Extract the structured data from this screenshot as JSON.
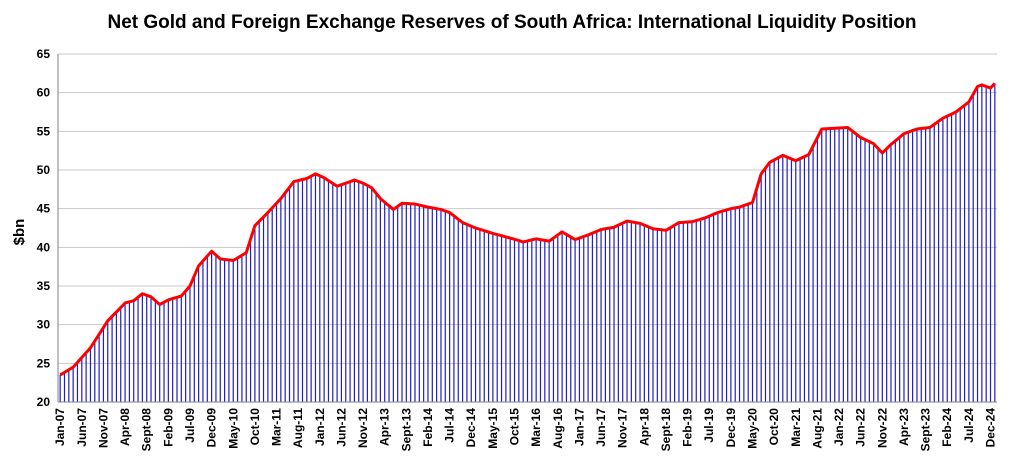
{
  "chart_data": {
    "type": "bar",
    "title": "Net Gold and Foreign Exchange Reserves of South Africa: International Liquidity Position",
    "ylabel": "$bn",
    "xlabel": "",
    "ylim": [
      20,
      65
    ],
    "yticks": [
      20,
      25,
      30,
      35,
      40,
      45,
      50,
      55,
      60,
      65
    ],
    "grid": "horizontal",
    "legend": "none",
    "bar_color": "#1f1fbf",
    "line_color": "#ff0000",
    "x_start": "2007-01",
    "x_end": "2025-01",
    "x_tick_labels": [
      "Jan-07",
      "Jun-07",
      "Nov-07",
      "Apr-08",
      "Sept-08",
      "Feb-09",
      "Jul-09",
      "Dec-09",
      "May-10",
      "Oct-10",
      "Mar-11",
      "Aug-11",
      "Jan-12",
      "Jun-12",
      "Nov-12",
      "Apr-13",
      "Sept-13",
      "Feb-14",
      "Jul-14",
      "Dec-14",
      "May-15",
      "Oct-15",
      "Mar-16",
      "Aug-16",
      "Jan-17",
      "Jun-17",
      "Nov-17",
      "Apr-18",
      "Sept-18",
      "Feb-19",
      "Jul-19",
      "Dec-19",
      "May-20",
      "Oct-20",
      "Mar-21",
      "Aug-21",
      "Jan-22",
      "Jun-22",
      "Nov-22",
      "Apr-23",
      "Sept-23",
      "Feb-24",
      "Jul-24",
      "Dec-24"
    ],
    "series": [
      {
        "type": "bar",
        "anchors": [
          [
            "2007-01",
            23.5
          ],
          [
            "2007-04",
            24.5
          ],
          [
            "2007-08",
            27.0
          ],
          [
            "2007-12",
            30.5
          ],
          [
            "2008-04",
            32.8
          ],
          [
            "2008-06",
            33.1
          ],
          [
            "2008-08",
            34.0
          ],
          [
            "2008-10",
            33.6
          ],
          [
            "2008-12",
            32.6
          ],
          [
            "2009-02",
            33.2
          ],
          [
            "2009-05",
            33.7
          ],
          [
            "2009-07",
            35.0
          ],
          [
            "2009-09",
            37.6
          ],
          [
            "2009-12",
            39.5
          ],
          [
            "2010-02",
            38.5
          ],
          [
            "2010-05",
            38.3
          ],
          [
            "2010-08",
            39.3
          ],
          [
            "2010-10",
            42.8
          ],
          [
            "2011-01",
            44.5
          ],
          [
            "2011-04",
            46.3
          ],
          [
            "2011-07",
            48.5
          ],
          [
            "2011-10",
            48.9
          ],
          [
            "2011-12",
            49.5
          ],
          [
            "2012-02",
            49.0
          ],
          [
            "2012-05",
            47.9
          ],
          [
            "2012-07",
            48.3
          ],
          [
            "2012-09",
            48.7
          ],
          [
            "2012-11",
            48.3
          ],
          [
            "2013-01",
            47.7
          ],
          [
            "2013-03",
            46.3
          ],
          [
            "2013-06",
            44.9
          ],
          [
            "2013-08",
            45.7
          ],
          [
            "2013-11",
            45.6
          ],
          [
            "2014-02",
            45.2
          ],
          [
            "2014-05",
            44.9
          ],
          [
            "2014-07",
            44.5
          ],
          [
            "2014-10",
            43.2
          ],
          [
            "2015-01",
            42.5
          ],
          [
            "2015-05",
            41.8
          ],
          [
            "2015-09",
            41.2
          ],
          [
            "2015-12",
            40.7
          ],
          [
            "2016-03",
            41.1
          ],
          [
            "2016-06",
            40.8
          ],
          [
            "2016-09",
            42.0
          ],
          [
            "2016-12",
            41.0
          ],
          [
            "2017-03",
            41.6
          ],
          [
            "2017-06",
            42.3
          ],
          [
            "2017-09",
            42.6
          ],
          [
            "2017-12",
            43.4
          ],
          [
            "2018-03",
            43.1
          ],
          [
            "2018-06",
            42.4
          ],
          [
            "2018-09",
            42.2
          ],
          [
            "2018-12",
            43.2
          ],
          [
            "2019-03",
            43.3
          ],
          [
            "2019-06",
            43.8
          ],
          [
            "2019-09",
            44.5
          ],
          [
            "2019-12",
            45.0
          ],
          [
            "2020-02",
            45.2
          ],
          [
            "2020-05",
            45.8
          ],
          [
            "2020-07",
            49.5
          ],
          [
            "2020-09",
            51.0
          ],
          [
            "2020-12",
            51.9
          ],
          [
            "2021-03",
            51.2
          ],
          [
            "2021-06",
            52.0
          ],
          [
            "2021-09",
            55.3
          ],
          [
            "2021-12",
            55.4
          ],
          [
            "2022-03",
            55.5
          ],
          [
            "2022-06",
            54.2
          ],
          [
            "2022-09",
            53.4
          ],
          [
            "2022-11",
            52.2
          ],
          [
            "2023-01",
            53.3
          ],
          [
            "2023-04",
            54.7
          ],
          [
            "2023-07",
            55.3
          ],
          [
            "2023-10",
            55.5
          ],
          [
            "2024-01",
            56.7
          ],
          [
            "2024-04",
            57.5
          ],
          [
            "2024-07",
            58.8
          ],
          [
            "2024-09",
            60.8
          ],
          [
            "2024-10",
            61.0
          ],
          [
            "2024-12",
            60.6
          ],
          [
            "2025-01",
            61.2
          ]
        ]
      }
    ]
  }
}
